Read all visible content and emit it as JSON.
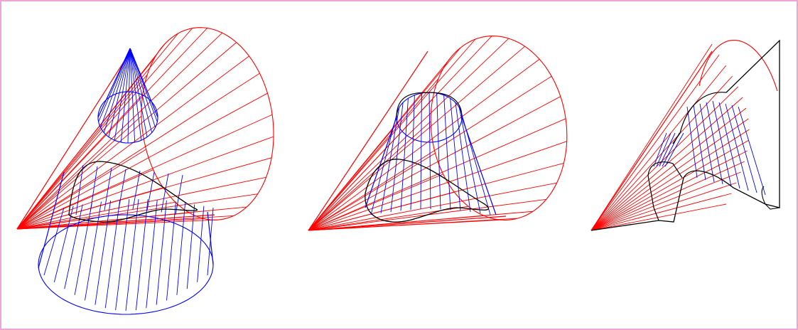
{
  "colors": {
    "border": "#f0a6d4",
    "red_cone": "#ff0000",
    "blue_cone": "#0000ff",
    "intersection": "#000000",
    "background": "#ffffff"
  },
  "panels": [
    {
      "id": "panel-1",
      "stage": "two-cones-full",
      "shows_vertical_cone": true
    },
    {
      "id": "panel-2",
      "stage": "cones-interpenetrating",
      "shows_vertical_cone": true
    },
    {
      "id": "panel-3",
      "stage": "cut-solid",
      "shows_vertical_cone": true
    }
  ]
}
